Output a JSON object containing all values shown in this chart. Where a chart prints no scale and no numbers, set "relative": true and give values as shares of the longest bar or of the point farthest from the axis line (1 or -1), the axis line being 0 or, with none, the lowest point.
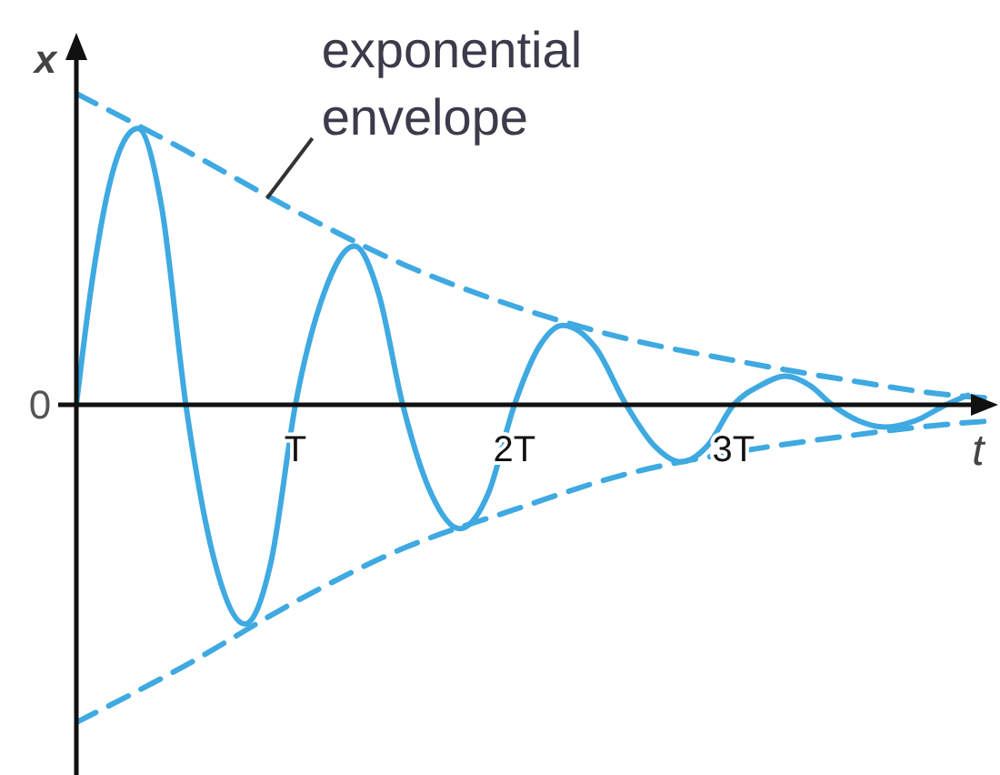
{
  "chart_data": {
    "type": "line",
    "relative": true,
    "xlabel": "t",
    "ylabel": "x",
    "xlim": [
      0,
      4.2
    ],
    "xticks": [
      {
        "value": 1,
        "label": "T"
      },
      {
        "value": 2,
        "label": "2T"
      },
      {
        "value": 3,
        "label": "3T"
      }
    ],
    "annotations": [
      {
        "text": "exponential envelope",
        "x": 0.87,
        "y": 0.65
      },
      "0"
    ],
    "series": [
      {
        "color": "#3fa9e1",
        "line_style": "solid",
        "x": [
          0,
          0.07,
          0.14,
          0.21,
          0.28,
          0.39,
          0.5,
          0.63,
          0.77,
          0.89,
          1,
          1.13,
          1.27,
          1.38,
          1.49,
          1.62,
          1.75,
          1.88,
          2,
          2.11,
          2.22,
          2.37,
          2.51,
          2.64,
          2.76,
          2.88,
          3,
          3.12,
          3.24,
          3.35,
          3.45,
          3.57,
          3.69,
          3.83,
          3.97,
          4.07
        ],
        "values": [
          0,
          0.38,
          0.66,
          0.82,
          0.87,
          0.62,
          0,
          -0.49,
          -0.69,
          -0.49,
          0,
          0.35,
          0.5,
          0.35,
          0,
          -0.28,
          -0.39,
          -0.28,
          0,
          0.18,
          0.25,
          0.18,
          0,
          -0.13,
          -0.18,
          -0.13,
          0,
          0.06,
          0.09,
          0.06,
          0,
          -0.05,
          -0.07,
          -0.05,
          0,
          0.03
        ]
      },
      {
        "color": "#3fa9e1",
        "line_style": "dashed",
        "x": [
          0,
          0.5,
          1,
          1.5,
          2,
          2.5,
          3,
          3.5,
          4,
          4.2
        ],
        "values": [
          0.98,
          0.8,
          0.61,
          0.44,
          0.31,
          0.21,
          0.14,
          0.08,
          0.03,
          0.02
        ]
      },
      {
        "color": "#3fa9e1",
        "line_style": "dashed",
        "x": [
          0,
          0.5,
          1,
          1.5,
          2,
          2.5,
          3,
          3.5,
          4,
          4.2
        ],
        "values": [
          -1,
          -0.82,
          -0.62,
          -0.45,
          -0.33,
          -0.22,
          -0.15,
          -0.1,
          -0.06,
          -0.05
        ]
      }
    ]
  }
}
